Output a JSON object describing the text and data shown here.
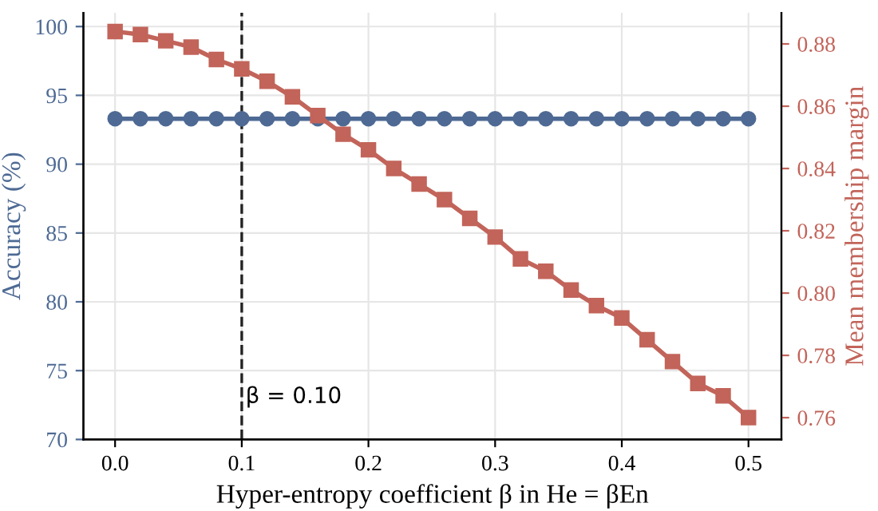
{
  "chart_data": {
    "type": "line",
    "xlabel": "Hyper-entropy coefficient β in He = βEn",
    "ylabel": "Accuracy (%)",
    "y2label": "Mean membership margin",
    "x": [
      0.0,
      0.02,
      0.04,
      0.06,
      0.08,
      0.1,
      0.12,
      0.14,
      0.16,
      0.18,
      0.2,
      0.22,
      0.24,
      0.26,
      0.28,
      0.3,
      0.32,
      0.34,
      0.36,
      0.38,
      0.4,
      0.42,
      0.44,
      0.46,
      0.48,
      0.5
    ],
    "series": [
      {
        "color": "#4e6a94",
        "marker": "circle",
        "values": [
          93.3,
          93.3,
          93.3,
          93.3,
          93.3,
          93.3,
          93.3,
          93.3,
          93.3,
          93.3,
          93.3,
          93.3,
          93.3,
          93.3,
          93.3,
          93.3,
          93.3,
          93.3,
          93.3,
          93.3,
          93.3,
          93.3,
          93.3,
          93.3,
          93.3,
          93.3
        ]
      },
      {
        "color": "#c2645a",
        "marker": "square",
        "axis": "y2",
        "values": [
          0.884,
          0.883,
          0.881,
          0.879,
          0.875,
          0.872,
          0.868,
          0.863,
          0.857,
          0.851,
          0.846,
          0.84,
          0.835,
          0.83,
          0.824,
          0.818,
          0.811,
          0.807,
          0.801,
          0.796,
          0.792,
          0.785,
          0.778,
          0.771,
          0.767,
          0.76
        ]
      }
    ],
    "xlim": [
      -0.025,
      0.526
    ],
    "xticks": [
      {
        "value": 0.0,
        "label": "0.0"
      },
      0.1,
      0.2,
      0.3,
      0.4,
      0.5
    ],
    "ylim": [
      70,
      101
    ],
    "yticks": [
      70,
      75,
      80,
      85,
      90,
      95,
      100
    ],
    "y2lim": [
      0.753,
      0.89
    ],
    "y2ticks": [
      {
        "value": 0.76,
        "label": "0.76"
      },
      {
        "value": 0.78,
        "label": "0.78"
      },
      {
        "value": 0.8,
        "label": "0.80"
      },
      {
        "value": 0.82,
        "label": "0.82"
      },
      {
        "value": 0.84,
        "label": "0.84"
      },
      {
        "value": 0.86,
        "label": "0.86"
      },
      {
        "value": 0.88,
        "label": "0.88"
      }
    ],
    "ref_lines": [
      {
        "axis": "x",
        "value": 0.1,
        "label": "β = 0.10",
        "color": "#222222",
        "line_style": "dashed"
      }
    ],
    "grid": true
  }
}
